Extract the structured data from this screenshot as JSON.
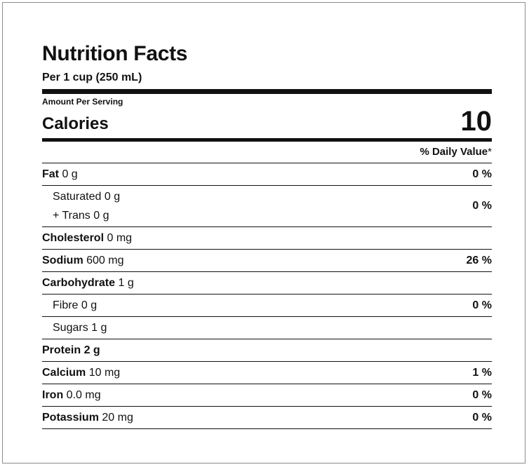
{
  "title": "Nutrition Facts",
  "serving": "Per 1 cup (250 mL)",
  "amount_per_serving": "Amount Per Serving",
  "calories": {
    "label": "Calories",
    "value": "10"
  },
  "daily_value_header": "% Daily Value",
  "daily_value_star": "*",
  "nutrients": [
    {
      "name": "Fat",
      "amount": "0 g",
      "dv": "0 %"
    },
    {
      "name": "Saturated",
      "amount": "0 g"
    },
    {
      "name": "+ Trans",
      "amount": "0 g",
      "dv": "0 %"
    },
    {
      "name": "Cholesterol",
      "amount": "0 mg",
      "dv": ""
    },
    {
      "name": "Sodium",
      "amount": "600 mg",
      "dv": "26 %"
    },
    {
      "name": "Carbohydrate",
      "amount": "1 g",
      "dv": ""
    },
    {
      "name": "Fibre",
      "amount": "0 g",
      "dv": "0 %"
    },
    {
      "name": "Sugars",
      "amount": "1 g",
      "dv": ""
    },
    {
      "name": "Protein",
      "amount": "2 g",
      "dv": ""
    },
    {
      "name": "Calcium",
      "amount": "10 mg",
      "dv": "1 %"
    },
    {
      "name": "Iron",
      "amount": "0.0 mg",
      "dv": "0 %"
    },
    {
      "name": "Potassium",
      "amount": "20 mg",
      "dv": "0 %"
    }
  ]
}
